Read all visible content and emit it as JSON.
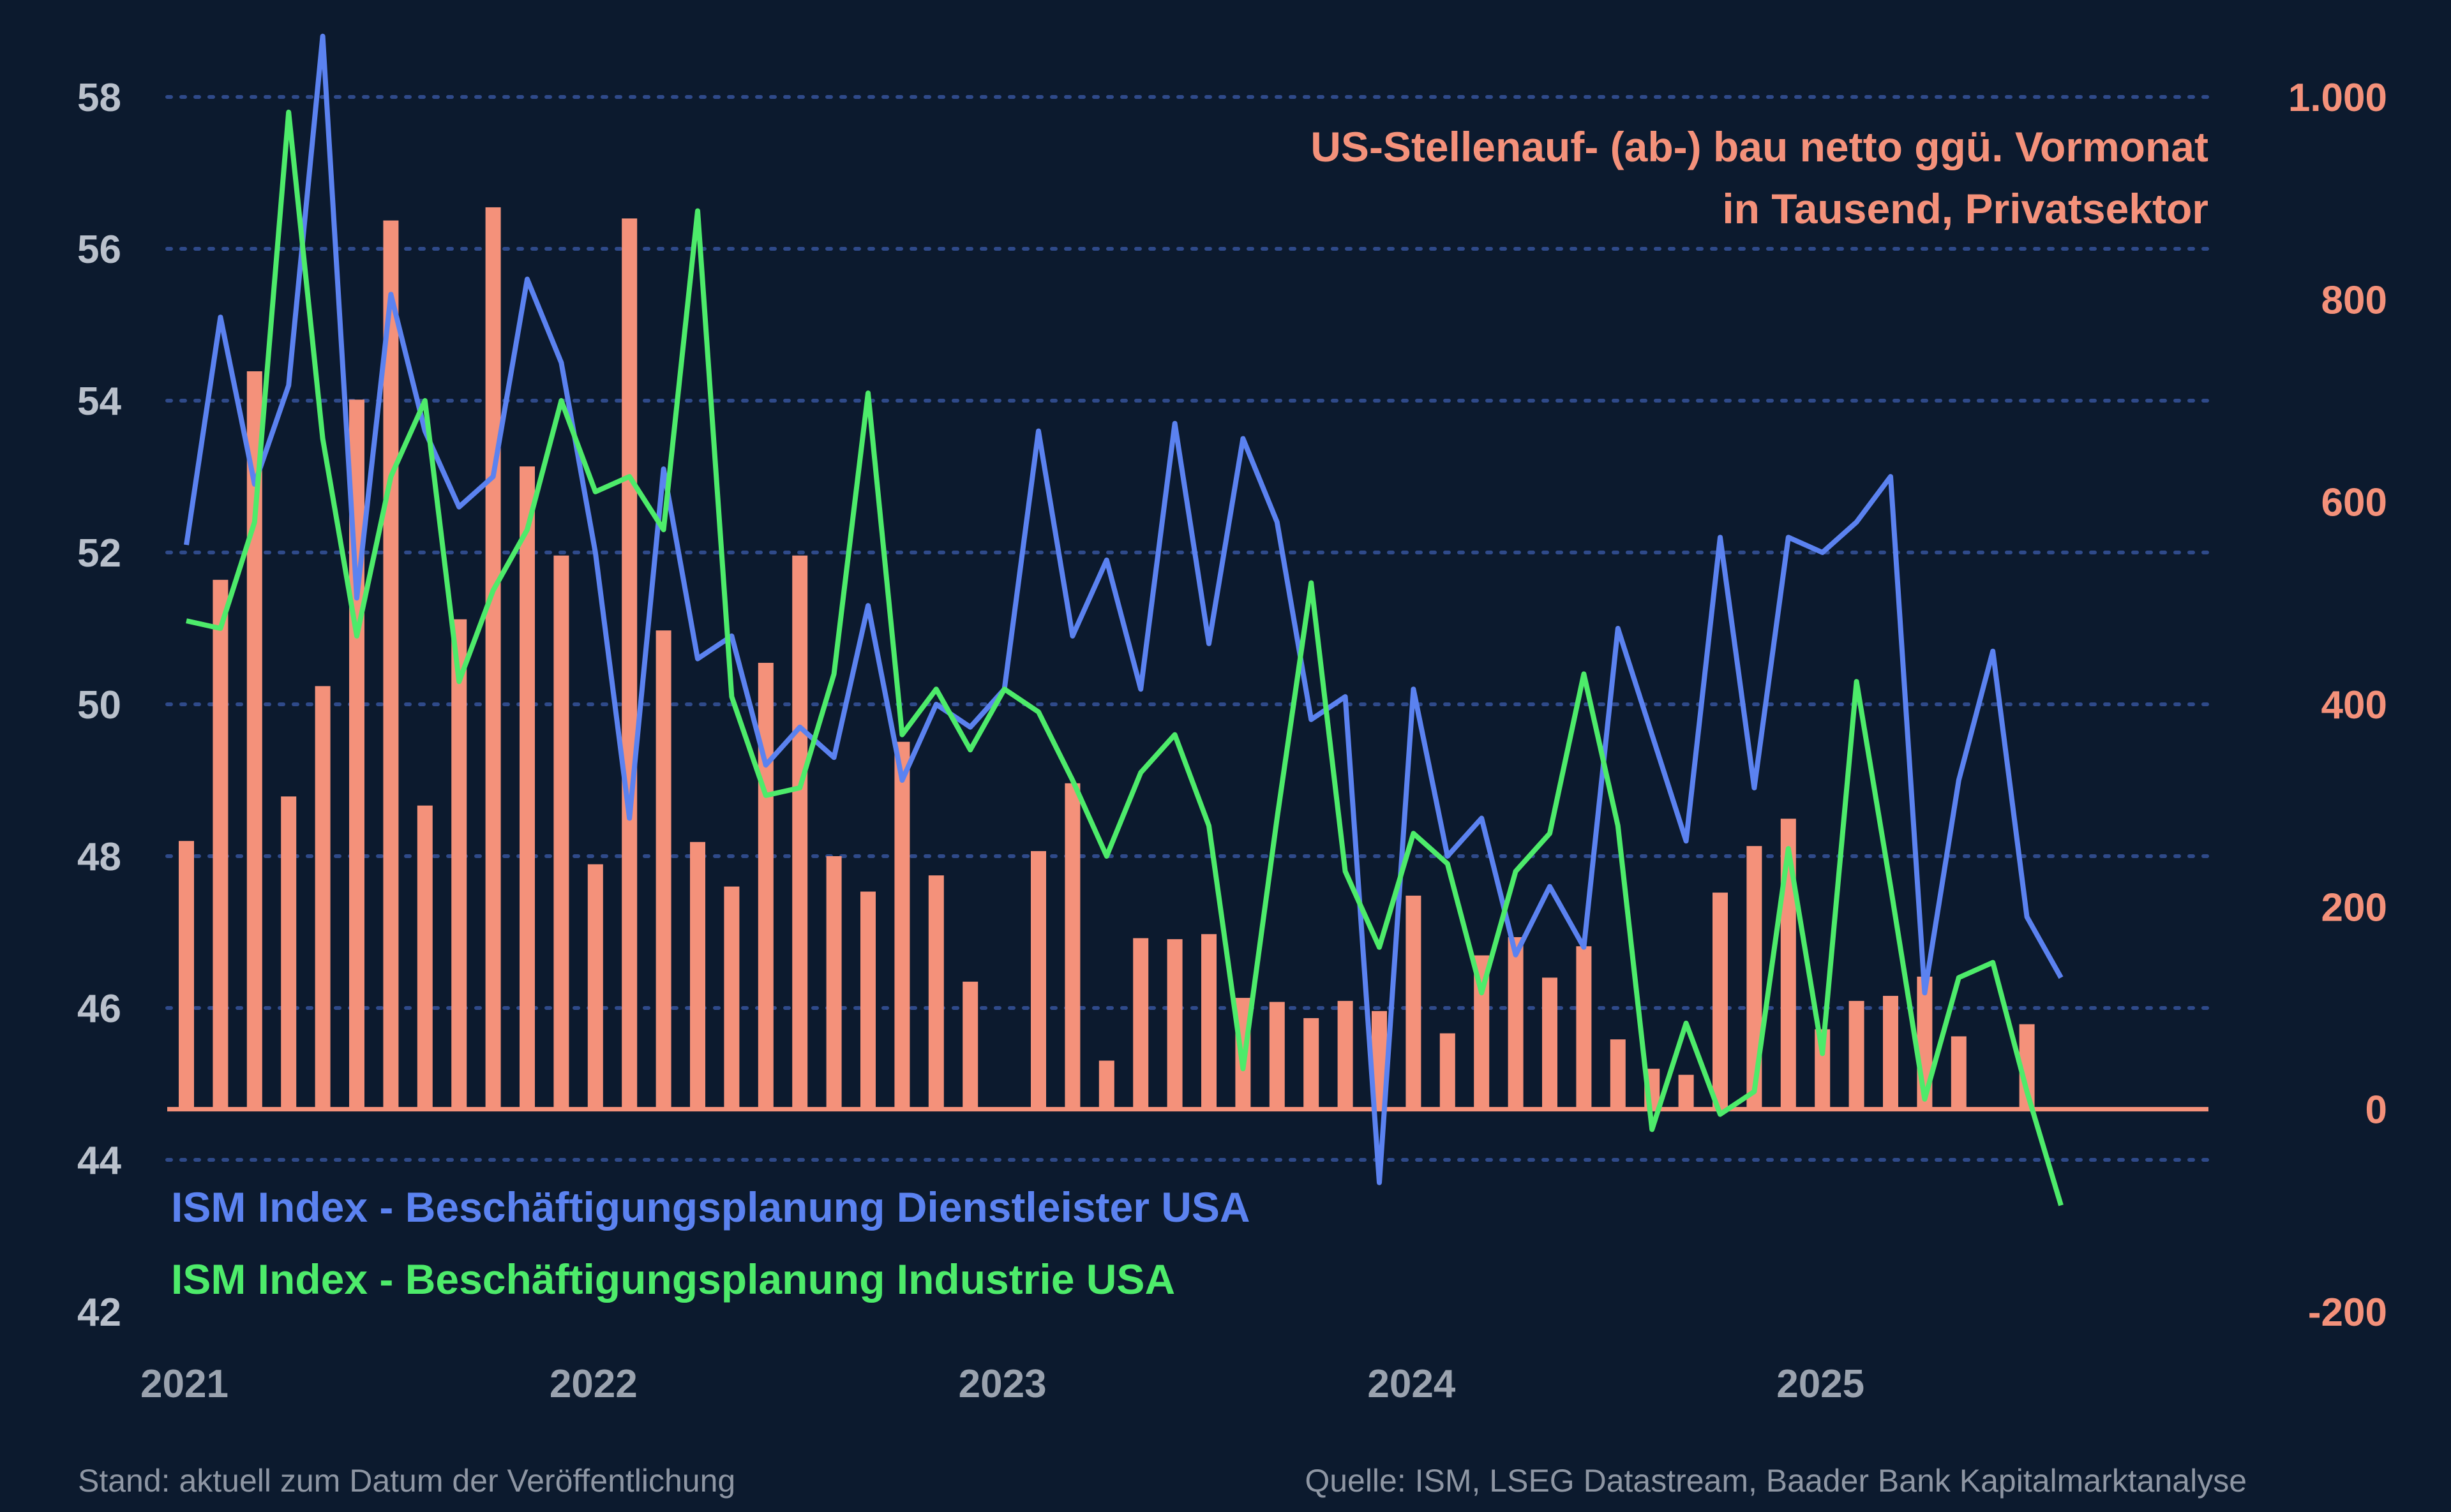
{
  "chart_data": {
    "type": "bar+line",
    "title_right": [
      "US-Stellenauf- (ab-) bau netto ggü. Vormonat",
      "in Tausend, Privatsektor"
    ],
    "left_axis": {
      "range": [
        42,
        58
      ],
      "ticks": [
        "58",
        "56",
        "54",
        "52",
        "50",
        "48",
        "46",
        "44",
        "42"
      ],
      "tick_values": [
        58,
        56,
        54,
        52,
        50,
        48,
        46,
        44,
        42
      ]
    },
    "right_axis": {
      "range": [
        -200,
        1000
      ],
      "ticks": [
        "1.000",
        "800",
        "600",
        "400",
        "200",
        "0",
        "-200"
      ],
      "tick_values": [
        1000,
        800,
        600,
        400,
        200,
        0,
        -200
      ]
    },
    "x_axis": {
      "labels": [
        "2021",
        "2022",
        "2023",
        "2024",
        "2025"
      ],
      "label_month_index": [
        0,
        12,
        24,
        36,
        48
      ],
      "month_count": 61
    },
    "legend": {
      "services": "ISM Index - Beschäftigungsplanung Dienstleister USA",
      "industry": "ISM Index - Beschäftigungsplanung Industrie USA"
    },
    "series": [
      {
        "name": "US-Stellenauf- (ab-) bau netto ggü. Vormonat",
        "axis": "right",
        "type": "bar",
        "start_month": 0,
        "values": [
          265,
          523,
          729,
          309,
          418,
          701,
          878,
          300,
          484,
          891,
          635,
          547,
          242,
          880,
          473,
          264,
          220,
          441,
          547,
          250,
          215,
          363,
          231,
          126,
          null,
          255,
          322,
          48,
          169,
          168,
          173,
          110,
          106,
          90,
          107,
          97,
          211,
          75,
          152,
          170,
          130,
          161,
          69,
          40,
          34,
          214,
          260,
          287,
          79,
          107,
          112,
          131,
          72,
          null,
          84
        ]
      },
      {
        "name": "ISM Index - Beschäftigungsplanung Dienstleister USA",
        "axis": "left",
        "type": "line",
        "start_month": 0,
        "values": [
          52.1,
          55.1,
          52.9,
          54.2,
          58.8,
          51.4,
          55.4,
          53.6,
          52.6,
          53.0,
          55.6,
          54.5,
          52.0,
          48.5,
          53.1,
          50.6,
          50.9,
          49.2,
          49.7,
          49.3,
          51.3,
          49.0,
          50.0,
          49.7,
          50.2,
          53.6,
          50.9,
          51.9,
          50.2,
          53.7,
          50.8,
          53.5,
          52.4,
          49.8,
          50.1,
          43.7,
          50.2,
          48.0,
          48.5,
          46.7,
          47.6,
          46.8,
          51.0,
          49.6,
          48.2,
          52.2,
          48.9,
          52.2,
          52.0,
          52.4,
          53.0,
          46.2,
          49.0,
          50.7,
          47.2,
          46.4
        ]
      },
      {
        "name": "ISM Index - Beschäftigungsplanung Industrie USA",
        "axis": "left",
        "type": "line",
        "start_month": 0,
        "values": [
          51.1,
          51.0,
          52.4,
          57.8,
          53.5,
          50.9,
          53.0,
          54.0,
          50.3,
          51.5,
          52.3,
          54.0,
          52.8,
          53.0,
          52.3,
          56.5,
          50.1,
          48.8,
          48.9,
          50.4,
          54.1,
          49.6,
          50.2,
          49.4,
          50.2,
          49.9,
          49.0,
          48.0,
          49.1,
          49.6,
          48.4,
          45.2,
          48.5,
          51.6,
          47.8,
          46.8,
          48.3,
          47.9,
          46.2,
          47.8,
          48.3,
          50.4,
          48.4,
          44.4,
          45.8,
          44.6,
          44.9,
          48.1,
          45.4,
          50.3,
          47.6,
          44.8,
          46.4,
          46.6,
          44.9,
          43.4
        ]
      }
    ]
  },
  "footer": {
    "left": "Stand: aktuell zum Datum der Veröffentlichung",
    "right": "Quelle: ISM, LSEG Datastream, Baader Bank Kapitalmarktanalyse"
  },
  "colors": {
    "background": "#0c1a2e",
    "bars": "#f4917a",
    "services": "#5b82f0",
    "industry": "#4deb6a",
    "grid": "#2f4a8a"
  }
}
